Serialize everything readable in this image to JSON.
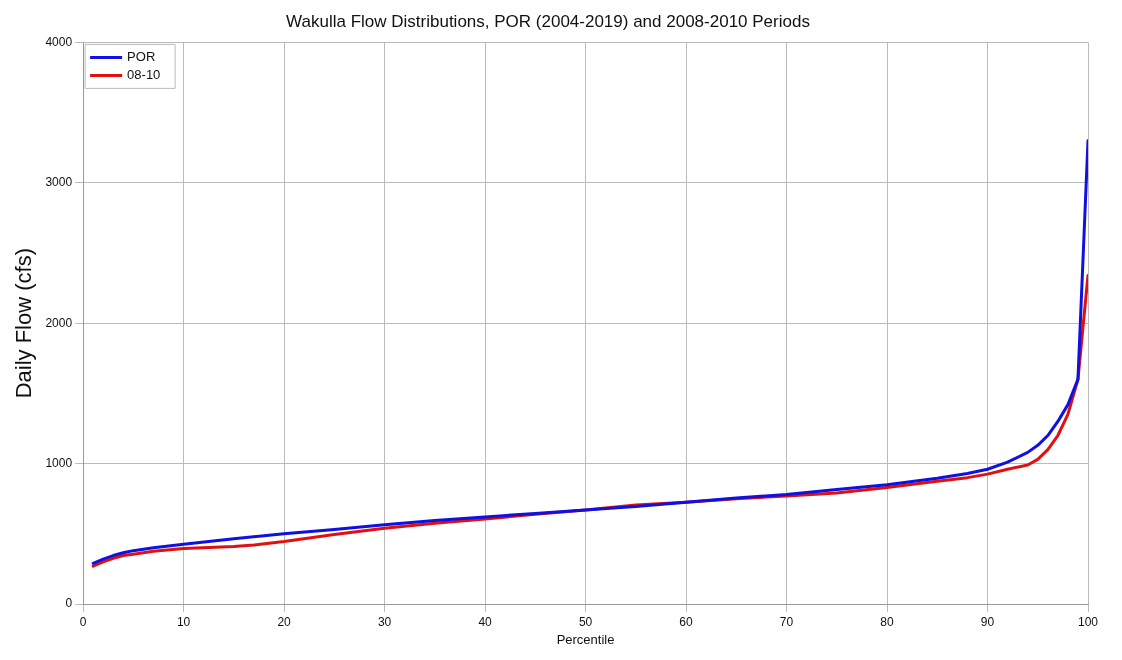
{
  "chart_data": {
    "type": "line",
    "title": "Wakulla Flow Distributions, POR (2004-2019) and 2008-2010 Periods",
    "xlabel": "Percentile",
    "ylabel": "Daily Flow (cfs)",
    "xlim": [
      0,
      100
    ],
    "xticks": [
      0,
      10,
      20,
      30,
      40,
      50,
      60,
      70,
      80,
      90,
      100
    ],
    "ylim": [
      0,
      4000
    ],
    "yticks": [
      0,
      1000,
      2000,
      3000,
      4000
    ],
    "grid": true,
    "legend": "top left",
    "marker": "none",
    "line_style": "solid",
    "series": [
      {
        "name": "POR",
        "color": "#1010e0",
        "x": [
          1,
          2,
          3,
          4,
          5,
          7,
          10,
          15,
          20,
          25,
          30,
          35,
          40,
          45,
          50,
          55,
          60,
          65,
          70,
          75,
          80,
          85,
          88,
          90,
          92,
          94,
          95,
          96,
          97,
          98,
          99,
          100
        ],
        "values": [
          290,
          320,
          345,
          365,
          380,
          400,
          425,
          465,
          500,
          530,
          565,
          595,
          620,
          645,
          670,
          695,
          725,
          755,
          780,
          815,
          850,
          895,
          930,
          960,
          1010,
          1080,
          1130,
          1200,
          1300,
          1420,
          1600,
          3300
        ]
      },
      {
        "name": "08-10",
        "color": "#e01010",
        "x": [
          1,
          2,
          3,
          4,
          5,
          7,
          10,
          15,
          17,
          20,
          25,
          30,
          35,
          40,
          45,
          50,
          55,
          60,
          65,
          70,
          75,
          80,
          85,
          88,
          90,
          92,
          94,
          95,
          96,
          97,
          98,
          99,
          100
        ],
        "values": [
          270,
          300,
          325,
          345,
          355,
          375,
          395,
          410,
          420,
          445,
          495,
          540,
          575,
          605,
          640,
          670,
          705,
          725,
          750,
          770,
          790,
          830,
          875,
          900,
          925,
          960,
          990,
          1030,
          1100,
          1200,
          1350,
          1600,
          2340
        ]
      }
    ]
  }
}
